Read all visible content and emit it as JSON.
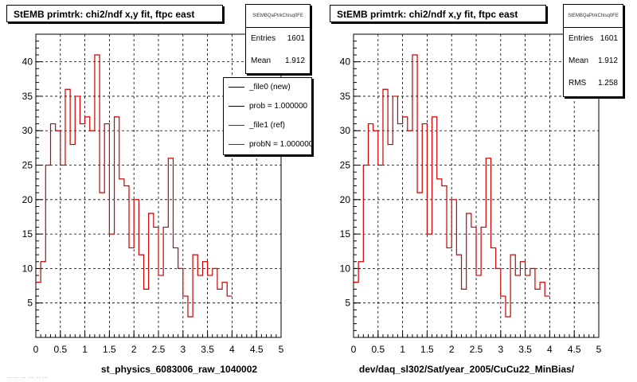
{
  "chart_data": [
    {
      "type": "histogram",
      "title": "StEMB primtrk: chi2/ndf x,y fit, ftpc east",
      "xlabel": "st_physics_6083006_raw_1040002",
      "ylabel": "",
      "xlim": [
        0,
        5
      ],
      "ylim": [
        0,
        44
      ],
      "bin_width": 0.1,
      "x_ticks": [
        "0",
        "0.5",
        "1",
        "1.5",
        "2",
        "2.5",
        "3",
        "3.5",
        "4",
        "4.5",
        "5"
      ],
      "y_ticks": [
        "5",
        "10",
        "15",
        "20",
        "25",
        "30",
        "35",
        "40"
      ],
      "grid": true,
      "series": [
        {
          "color": "#cc0000",
          "values": [
            8,
            11,
            25,
            31,
            30,
            25,
            36,
            28,
            35,
            31,
            32,
            30,
            41,
            21,
            31,
            15,
            32,
            23,
            22,
            13,
            20,
            12,
            7,
            18,
            16,
            9,
            16,
            26,
            13,
            10,
            6,
            3,
            12,
            9,
            11,
            9,
            10,
            7,
            8,
            6
          ]
        }
      ],
      "stats": {
        "header": "StEMBQaPtrkChisq0FE",
        "entries_label": "Entries",
        "entries": "1601",
        "mean_label": "Mean",
        "mean": "1.912"
      },
      "legend": [
        {
          "label": "_file0 (new)",
          "color": "#000000"
        },
        {
          "label": "prob = 1.000000",
          "color": "#000000"
        },
        {
          "label": "_file1 (ref)",
          "color": "#cc0000"
        },
        {
          "label": "probN = 1.000000",
          "color": "#cc0000"
        }
      ]
    },
    {
      "type": "histogram",
      "title": "StEMB primtrk: chi2/ndf x,y fit, ftpc east",
      "xlabel": "dev/daq_sl302/Sat/year_2005/CuCu22_MinBias/",
      "ylabel": "",
      "xlim": [
        0,
        5
      ],
      "ylim": [
        0,
        44
      ],
      "bin_width": 0.1,
      "x_ticks": [
        "0",
        "0.5",
        "1",
        "1.5",
        "2",
        "2.5",
        "3",
        "3.5",
        "4",
        "4.5",
        "5"
      ],
      "y_ticks": [
        "5",
        "10",
        "15",
        "20",
        "25",
        "30",
        "35",
        "40"
      ],
      "grid": true,
      "series": [
        {
          "color": "#cc0000",
          "values": [
            8,
            11,
            25,
            31,
            30,
            25,
            36,
            28,
            35,
            31,
            32,
            30,
            41,
            21,
            31,
            15,
            32,
            23,
            22,
            13,
            20,
            12,
            7,
            18,
            16,
            9,
            16,
            26,
            13,
            10,
            6,
            3,
            12,
            9,
            11,
            9,
            10,
            7,
            8,
            6
          ]
        }
      ],
      "stats": {
        "header": "StEMBQaPtrkChisq0FE",
        "entries_label": "Entries",
        "entries": "1601",
        "mean_label": "Mean",
        "mean": "1.912",
        "rms_label": "RMS",
        "rms": "1.258"
      }
    }
  ],
  "footer_text": "… … … … … …"
}
